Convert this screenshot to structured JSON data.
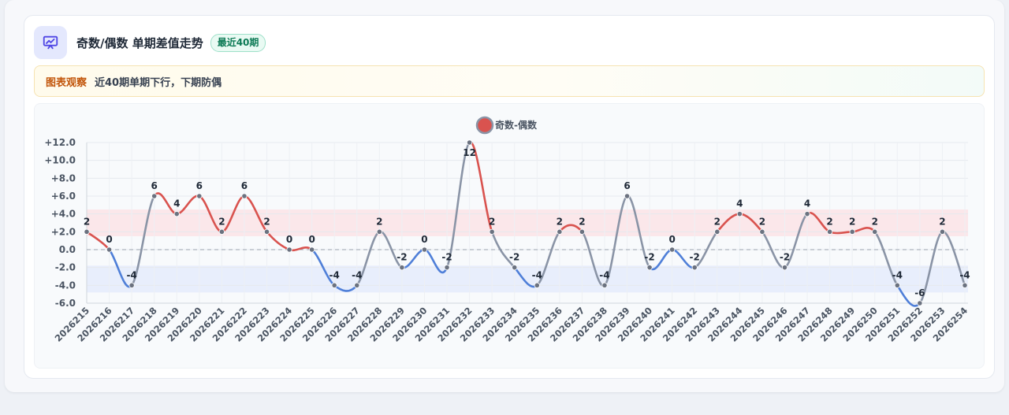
{
  "header": {
    "title": "奇数/偶数 单期差值走势",
    "badge": "最近40期",
    "icon": "presentation-chart-icon"
  },
  "note": {
    "label": "图表观察",
    "text": "近40期单期下行，下期防偶"
  },
  "colors": {
    "positive": "#d9534f",
    "negative": "#4f7fd8",
    "neutral": "#8a94a6",
    "positive_band": "#fbe3e6",
    "negative_band": "#e5ebfb",
    "marker": "#6b7280"
  },
  "chart_data": {
    "type": "line",
    "legend": {
      "label": "奇数-偶数",
      "position": "top-center"
    },
    "x": [
      "2026215",
      "2026216",
      "2026217",
      "2026218",
      "2026219",
      "2026220",
      "2026221",
      "2026222",
      "2026223",
      "2026224",
      "2026225",
      "2026226",
      "2026227",
      "2026228",
      "2026229",
      "2026230",
      "2026231",
      "2026232",
      "2026233",
      "2026234",
      "2026235",
      "2026236",
      "2026237",
      "2026238",
      "2026239",
      "2026240",
      "2026241",
      "2026242",
      "2026243",
      "2026244",
      "2026245",
      "2026246",
      "2026247",
      "2026248",
      "2026249",
      "2026250",
      "2026251",
      "2026252",
      "2026253",
      "2026254"
    ],
    "series": [
      {
        "name": "奇数-偶数",
        "values": [
          2,
          0,
          -4,
          6,
          4,
          6,
          2,
          6,
          2,
          0,
          0,
          -4,
          -4,
          2,
          -2,
          0,
          -2,
          12,
          2,
          -2,
          -4,
          2,
          2,
          -4,
          6,
          -2,
          0,
          -2,
          2,
          4,
          2,
          -2,
          4,
          2,
          2,
          2,
          -4,
          -6,
          2,
          -4
        ],
        "labels": [
          "2",
          "0",
          "-4",
          "6",
          "4",
          "6",
          "2",
          "6",
          "2",
          "0",
          "0",
          "-4",
          "-4",
          "2",
          "-2",
          "0",
          "-2",
          "12",
          "2",
          "-2",
          "-4",
          "2",
          "2",
          "-4",
          "6",
          "-2",
          "0",
          "-2",
          "2",
          "4",
          "2",
          "-2",
          "4",
          "2",
          "2",
          "2",
          "-4",
          "-6",
          "2",
          "-4"
        ]
      }
    ],
    "ylim": [
      -6,
      12
    ],
    "yticks": [
      12,
      10,
      8,
      6,
      4,
      2,
      0,
      -2,
      -4,
      -6
    ],
    "ytick_labels": [
      "+12.0",
      "+10.0",
      "+8.0",
      "+6.0",
      "+4.0",
      "+2.0",
      "0.0",
      "-2.0",
      "-4.0",
      "-6.0"
    ],
    "bands": [
      {
        "from": 1.5,
        "to": 4.5,
        "color": "#fbe3e6"
      },
      {
        "from": -1.8,
        "to": -4.8,
        "color": "#e5ebfb"
      }
    ],
    "zero_line": "dashed",
    "grid": true
  }
}
